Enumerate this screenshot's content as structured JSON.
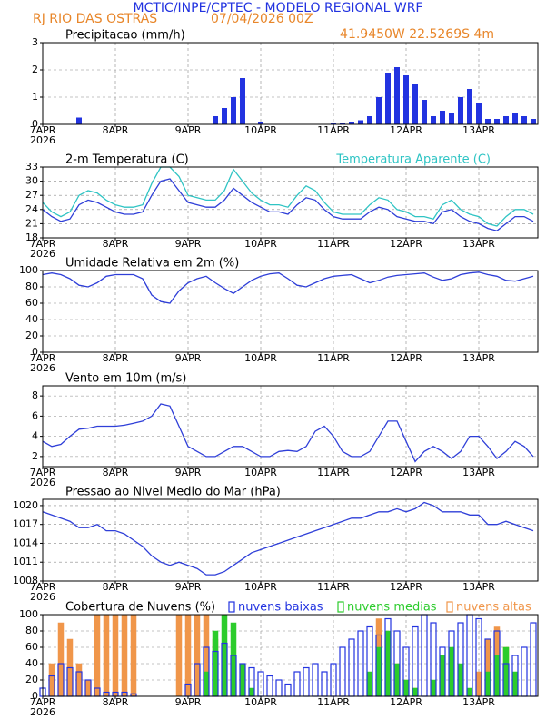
{
  "header": {
    "title": "MCTIC/INPE/CPTEC - MODELO REGIONAL WRF",
    "location": "RJ RIO DAS OSTRAS",
    "date": "07/04/2026 00Z",
    "coords": "41.9450W 22.5269S 4m"
  },
  "chart_data": [
    {
      "type": "bar",
      "title": "Precipitacao (mm/h)",
      "color": "#2233e0",
      "year": "2026",
      "x": [
        0,
        3,
        6,
        9,
        12,
        15,
        18,
        21,
        24,
        27,
        30,
        33,
        36,
        39,
        42,
        45,
        48,
        51,
        54,
        57,
        60,
        63,
        66,
        69,
        72,
        75,
        78,
        81,
        84,
        87,
        90,
        93,
        96,
        99,
        102,
        105,
        108,
        111,
        114,
        117,
        120,
        123,
        126,
        129,
        132,
        135,
        138,
        141,
        144,
        147,
        150,
        153,
        156,
        159,
        162
      ],
      "values": [
        0,
        0,
        0,
        0,
        0.25,
        0,
        0,
        0,
        0,
        0,
        0,
        0,
        0,
        0,
        0,
        0,
        0,
        0,
        0,
        0.3,
        0.6,
        1.0,
        1.7,
        0,
        0.1,
        0,
        0,
        0,
        0,
        0,
        0,
        0,
        0.05,
        0.05,
        0.1,
        0.15,
        0.3,
        1.0,
        1.9,
        2.1,
        1.8,
        1.5,
        0.9,
        0.3,
        0.5,
        0.4,
        1.0,
        1.3,
        0.8,
        0.2,
        0.2,
        0.3,
        0.4,
        0.3,
        0.2
      ],
      "xlim": [
        0,
        163.5
      ],
      "xticks": [
        {
          "value": 0,
          "label": "7APR"
        },
        {
          "value": 24,
          "label": "8APR"
        },
        {
          "value": 48,
          "label": "9APR"
        },
        {
          "value": 72,
          "label": "10APR"
        },
        {
          "value": 96,
          "label": "11APR"
        },
        {
          "value": 120,
          "label": "12APR"
        },
        {
          "value": 144,
          "label": "13APR"
        }
      ],
      "ylim": [
        0,
        3
      ],
      "yticks": [
        0,
        1,
        2,
        3
      ],
      "grid": true
    },
    {
      "type": "line",
      "title": "2-m Temperatura (C)",
      "year": "2026",
      "x": [
        0,
        3,
        6,
        9,
        12,
        15,
        18,
        21,
        24,
        27,
        30,
        33,
        36,
        39,
        42,
        45,
        48,
        51,
        54,
        57,
        60,
        63,
        66,
        69,
        72,
        75,
        78,
        81,
        84,
        87,
        90,
        93,
        96,
        99,
        102,
        105,
        108,
        111,
        114,
        117,
        120,
        123,
        126,
        129,
        132,
        135,
        138,
        141,
        144,
        147,
        150,
        153,
        156,
        159,
        162
      ],
      "series": [
        {
          "color": "#2f3fd8",
          "values": [
            24,
            22.5,
            21.5,
            22,
            25,
            26,
            25.5,
            24.5,
            23.5,
            23,
            23,
            23.5,
            27,
            30,
            30.5,
            28,
            25.5,
            25,
            24.5,
            24.5,
            26,
            28.5,
            27,
            25.5,
            24.5,
            23.5,
            23.5,
            23,
            25,
            26.5,
            26,
            24,
            22.5,
            22,
            22,
            22,
            23.5,
            24.5,
            24,
            22.5,
            22,
            21.5,
            21.5,
            21,
            23.5,
            24,
            22.5,
            21.5,
            21,
            20,
            19.5,
            21,
            22.5,
            22.5,
            21.5
          ]
        },
        {
          "name": "Temperatura Aparente (C)",
          "color": "#2fc4c4",
          "values": [
            25.5,
            23.5,
            22.5,
            23.5,
            27,
            28,
            27.5,
            26,
            25,
            24.5,
            24.5,
            25,
            29.5,
            33,
            33,
            31,
            27,
            26.5,
            26,
            26,
            28,
            32.5,
            30,
            27.5,
            26,
            25,
            25,
            24.5,
            27,
            29,
            28,
            25.5,
            23.5,
            23,
            23,
            23,
            25,
            26.5,
            26,
            24,
            23.5,
            22.5,
            22.5,
            22,
            25,
            26,
            24,
            23,
            22.5,
            21,
            20.5,
            22.5,
            24,
            24,
            23
          ]
        }
      ],
      "xlim": [
        0,
        163.5
      ],
      "xticks": [
        {
          "value": 0,
          "label": "7APR"
        },
        {
          "value": 24,
          "label": "8APR"
        },
        {
          "value": 48,
          "label": "9APR"
        },
        {
          "value": 72,
          "label": "10APR"
        },
        {
          "value": 96,
          "label": "11APR"
        },
        {
          "value": 120,
          "label": "12APR"
        },
        {
          "value": 144,
          "label": "13APR"
        }
      ],
      "ylim": [
        18,
        33
      ],
      "yticks": [
        18,
        21,
        24,
        27,
        30,
        33
      ],
      "grid": true
    },
    {
      "type": "line",
      "title": "Umidade Relativa em 2m (%)",
      "year": "2026",
      "x": [
        0,
        3,
        6,
        9,
        12,
        15,
        18,
        21,
        24,
        27,
        30,
        33,
        36,
        39,
        42,
        45,
        48,
        51,
        54,
        57,
        60,
        63,
        66,
        69,
        72,
        75,
        78,
        81,
        84,
        87,
        90,
        93,
        96,
        99,
        102,
        105,
        108,
        111,
        114,
        117,
        120,
        123,
        126,
        129,
        132,
        135,
        138,
        141,
        144,
        147,
        150,
        153,
        156,
        159,
        162
      ],
      "series": [
        {
          "color": "#2f3fd8",
          "values": [
            95,
            97,
            95,
            90,
            82,
            80,
            85,
            93,
            95,
            95,
            95,
            90,
            70,
            62,
            60,
            75,
            85,
            90,
            93,
            85,
            78,
            72,
            80,
            88,
            93,
            96,
            97,
            90,
            82,
            80,
            85,
            90,
            93,
            94,
            95,
            90,
            85,
            88,
            92,
            94,
            95,
            96,
            97,
            92,
            88,
            90,
            95,
            97,
            98,
            95,
            93,
            88,
            87,
            90,
            93
          ]
        }
      ],
      "xlim": [
        0,
        163.5
      ],
      "xticks": [
        {
          "value": 0,
          "label": "7APR"
        },
        {
          "value": 24,
          "label": "8APR"
        },
        {
          "value": 48,
          "label": "9APR"
        },
        {
          "value": 72,
          "label": "10APR"
        },
        {
          "value": 96,
          "label": "11APR"
        },
        {
          "value": 120,
          "label": "12APR"
        },
        {
          "value": 144,
          "label": "13APR"
        }
      ],
      "ylim": [
        0,
        100
      ],
      "yticks": [
        0,
        20,
        40,
        60,
        80,
        100
      ],
      "grid": true
    },
    {
      "type": "line",
      "title": "Vento em 10m (m/s)",
      "year": "2026",
      "x": [
        0,
        3,
        6,
        9,
        12,
        15,
        18,
        21,
        24,
        27,
        30,
        33,
        36,
        39,
        42,
        45,
        48,
        51,
        54,
        57,
        60,
        63,
        66,
        69,
        72,
        75,
        78,
        81,
        84,
        87,
        90,
        93,
        96,
        99,
        102,
        105,
        108,
        111,
        114,
        117,
        120,
        123,
        126,
        129,
        132,
        135,
        138,
        141,
        144,
        147,
        150,
        153,
        156,
        159,
        162
      ],
      "series": [
        {
          "color": "#2f3fd8",
          "values": [
            3.5,
            3.0,
            3.2,
            4.0,
            4.7,
            4.8,
            5.0,
            5.0,
            5.0,
            5.1,
            5.3,
            5.5,
            6.0,
            7.2,
            7.0,
            5.0,
            3.0,
            2.5,
            2.0,
            2.0,
            2.5,
            3.0,
            3.0,
            2.5,
            2.0,
            2.0,
            2.5,
            2.6,
            2.5,
            3.0,
            4.5,
            5.0,
            4.0,
            2.5,
            2.0,
            2.0,
            2.5,
            4.0,
            5.5,
            5.5,
            3.5,
            1.5,
            2.5,
            3.0,
            2.5,
            1.8,
            2.5,
            4.0,
            4.0,
            3.0,
            1.8,
            2.5,
            3.5,
            3.0,
            2.0
          ]
        }
      ],
      "xlim": [
        0,
        163.5
      ],
      "xticks": [
        {
          "value": 0,
          "label": "7APR"
        },
        {
          "value": 24,
          "label": "8APR"
        },
        {
          "value": 48,
          "label": "9APR"
        },
        {
          "value": 72,
          "label": "10APR"
        },
        {
          "value": 96,
          "label": "11APR"
        },
        {
          "value": 120,
          "label": "12APR"
        },
        {
          "value": 144,
          "label": "13APR"
        }
      ],
      "ylim": [
        1,
        9
      ],
      "yticks": [
        2,
        4,
        6,
        8
      ],
      "grid": true
    },
    {
      "type": "line",
      "title": "Pressao ao Nivel Medio do Mar (hPa)",
      "year": "2026",
      "x": [
        0,
        3,
        6,
        9,
        12,
        15,
        18,
        21,
        24,
        27,
        30,
        33,
        36,
        39,
        42,
        45,
        48,
        51,
        54,
        57,
        60,
        63,
        66,
        69,
        72,
        75,
        78,
        81,
        84,
        87,
        90,
        93,
        96,
        99,
        102,
        105,
        108,
        111,
        114,
        117,
        120,
        123,
        126,
        129,
        132,
        135,
        138,
        141,
        144,
        147,
        150,
        153,
        156,
        159,
        162
      ],
      "series": [
        {
          "color": "#2f3fd8",
          "values": [
            1019,
            1018.5,
            1018,
            1017.5,
            1016.5,
            1016.5,
            1017,
            1016,
            1016,
            1015.5,
            1014.5,
            1013.5,
            1012,
            1011,
            1010.5,
            1011,
            1010.5,
            1010,
            1009,
            1009,
            1009.5,
            1010.5,
            1011.5,
            1012.5,
            1013,
            1013.5,
            1014,
            1014.5,
            1015,
            1015.5,
            1016,
            1016.5,
            1017,
            1017.5,
            1018,
            1018,
            1018.5,
            1019,
            1019,
            1019.5,
            1019,
            1019.5,
            1020.5,
            1020,
            1019,
            1019,
            1019,
            1018.5,
            1018.5,
            1017,
            1017,
            1017.5,
            1017,
            1016.5,
            1016
          ]
        }
      ],
      "xlim": [
        0,
        163.5
      ],
      "xticks": [
        {
          "value": 0,
          "label": "7APR"
        },
        {
          "value": 24,
          "label": "8APR"
        },
        {
          "value": 48,
          "label": "9APR"
        },
        {
          "value": 72,
          "label": "10APR"
        },
        {
          "value": 96,
          "label": "11APR"
        },
        {
          "value": 120,
          "label": "12APR"
        },
        {
          "value": 144,
          "label": "13APR"
        }
      ],
      "ylim": [
        1008,
        1021
      ],
      "yticks": [
        1008,
        1011,
        1014,
        1017,
        1020
      ],
      "grid": true
    },
    {
      "type": "bar",
      "title": "Cobertura de Nuvens (%)",
      "year": "2026",
      "x": [
        0,
        3,
        6,
        9,
        12,
        15,
        18,
        21,
        24,
        27,
        30,
        33,
        36,
        39,
        42,
        45,
        48,
        51,
        54,
        57,
        60,
        63,
        66,
        69,
        72,
        75,
        78,
        81,
        84,
        87,
        90,
        93,
        96,
        99,
        102,
        105,
        108,
        111,
        114,
        117,
        120,
        123,
        126,
        129,
        132,
        135,
        138,
        141,
        144,
        147,
        150,
        153,
        156,
        159,
        162
      ],
      "series": [
        {
          "name": "nuvens altas",
          "color": "#f0964a",
          "values": [
            0,
            40,
            90,
            70,
            40,
            20,
            100,
            100,
            100,
            100,
            100,
            0,
            0,
            0,
            0,
            100,
            100,
            100,
            100,
            70,
            50,
            30,
            10,
            0,
            0,
            0,
            0,
            0,
            0,
            0,
            0,
            0,
            0,
            0,
            0,
            0,
            20,
            95,
            70,
            40,
            20,
            10,
            0,
            0,
            0,
            0,
            0,
            0,
            30,
            70,
            85,
            60,
            20,
            0,
            0
          ]
        },
        {
          "name": "nuvens medias",
          "color": "#2ccc2c",
          "values": [
            0,
            0,
            0,
            0,
            0,
            0,
            0,
            0,
            0,
            0,
            0,
            0,
            0,
            0,
            0,
            0,
            0,
            0,
            30,
            80,
            100,
            90,
            40,
            10,
            0,
            0,
            0,
            0,
            0,
            0,
            0,
            0,
            0,
            0,
            0,
            0,
            30,
            60,
            80,
            40,
            20,
            10,
            0,
            20,
            50,
            60,
            40,
            10,
            0,
            30,
            50,
            60,
            30,
            0,
            0
          ]
        },
        {
          "name": "nuvens baixas",
          "color": "#2233e0",
          "values": [
            10,
            25,
            40,
            35,
            30,
            20,
            10,
            5,
            5,
            5,
            3,
            0,
            0,
            0,
            0,
            0,
            15,
            40,
            60,
            55,
            65,
            50,
            40,
            35,
            30,
            25,
            20,
            15,
            30,
            35,
            40,
            30,
            40,
            60,
            70,
            80,
            85,
            75,
            95,
            80,
            60,
            85,
            100,
            90,
            60,
            80,
            90,
            100,
            95,
            70,
            80,
            40,
            50,
            60,
            90
          ]
        }
      ],
      "xlim": [
        0,
        163.5
      ],
      "xticks": [
        {
          "value": 0,
          "label": "7APR"
        },
        {
          "value": 24,
          "label": "8APR"
        },
        {
          "value": 48,
          "label": "9APR"
        },
        {
          "value": 72,
          "label": "10APR"
        },
        {
          "value": 96,
          "label": "11APR"
        },
        {
          "value": 120,
          "label": "12APR"
        },
        {
          "value": 144,
          "label": "13APR"
        }
      ],
      "ylim": [
        0,
        100
      ],
      "yticks": [
        0,
        20,
        40,
        60,
        80,
        100
      ],
      "grid": true
    }
  ]
}
